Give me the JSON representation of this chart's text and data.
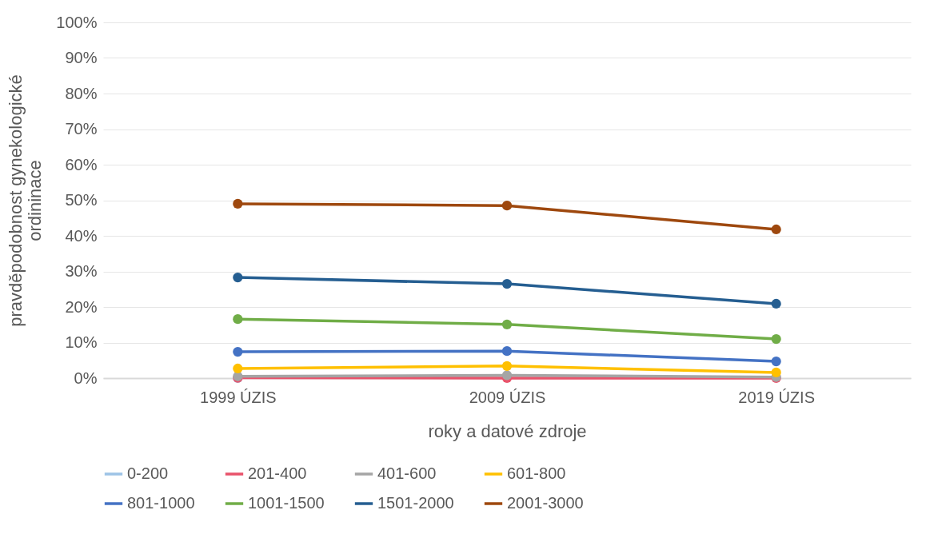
{
  "chart_data": {
    "type": "line",
    "xlabel": "roky a datové zdroje",
    "ylabel": "pravděpodobnost gynekologické ordininace",
    "categories": [
      "1999 ÚZIS",
      "2009 ÚZIS",
      "2019 ÚZIS"
    ],
    "series": [
      {
        "name": "0-200",
        "color": "#9dc3e6",
        "values": [
          0,
          null,
          null
        ]
      },
      {
        "name": "201-400",
        "color": "#e9536b",
        "values": [
          0.1,
          0,
          0
        ]
      },
      {
        "name": "401-600",
        "color": "#a5a5a5",
        "values": [
          0.5,
          0.8,
          0.3
        ]
      },
      {
        "name": "601-800",
        "color": "#ffc000",
        "values": [
          2.7,
          3.4,
          1.6
        ]
      },
      {
        "name": "801-1000",
        "color": "#4472c4",
        "values": [
          7.4,
          7.6,
          4.7
        ]
      },
      {
        "name": "1001-1500",
        "color": "#70ad47",
        "values": [
          16.6,
          15.1,
          11.0
        ]
      },
      {
        "name": "1501-2000",
        "color": "#255e91",
        "values": [
          28.3,
          26.5,
          20.9
        ]
      },
      {
        "name": "2001-3000",
        "color": "#9e480e",
        "values": [
          49.0,
          48.5,
          41.8
        ]
      }
    ],
    "ylim": [
      0,
      100
    ],
    "yticks": [
      {
        "value": 0,
        "label": "0%"
      },
      {
        "value": 10,
        "label": "10%"
      },
      {
        "value": 20,
        "label": "20%"
      },
      {
        "value": 30,
        "label": "30%"
      },
      {
        "value": 40,
        "label": "40%"
      },
      {
        "value": 50,
        "label": "50%"
      },
      {
        "value": 60,
        "label": "60%"
      },
      {
        "value": 70,
        "label": "70%"
      },
      {
        "value": 80,
        "label": "80%"
      },
      {
        "value": 90,
        "label": "90%"
      },
      {
        "value": 100,
        "label": "100%"
      }
    ],
    "grid": true,
    "legend": "bottom",
    "marker": "circle",
    "line_style": "solid"
  }
}
